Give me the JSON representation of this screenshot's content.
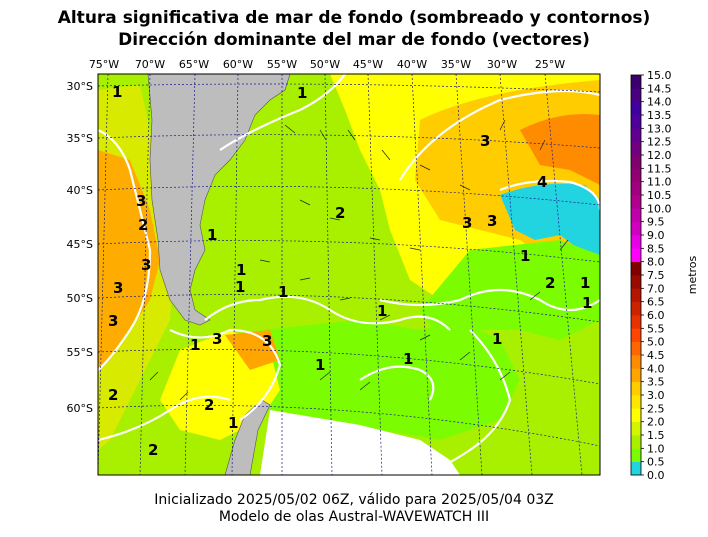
{
  "title": {
    "line1": "Altura significativa de mar de fondo (sombreado y contornos)",
    "line2": "Dirección dominante del mar de fondo (vectores)"
  },
  "footer": {
    "line1": "Inicializado 2025/05/02 06Z, válido para 2025/05/04 03Z",
    "line2": "Modelo de olas Austral-WAVEWATCH III"
  },
  "map": {
    "lon_ticks": [
      "75°W",
      "70°W",
      "65°W",
      "60°W",
      "55°W",
      "50°W",
      "45°W",
      "40°W",
      "35°W",
      "30°W",
      "25°W"
    ],
    "lat_ticks": [
      "30°S",
      "35°S",
      "40°S",
      "45°S",
      "50°S",
      "55°S",
      "60°S"
    ],
    "contour_labels": [
      "1",
      "3",
      "4",
      "3",
      "3",
      "2",
      "3",
      "2",
      "1",
      "1",
      "1",
      "3",
      "1",
      "1",
      "3",
      "3",
      "1",
      "1",
      "1",
      "1",
      "2",
      "1",
      "1",
      "1",
      "3",
      "3",
      "2",
      "2",
      "2",
      "1",
      "1"
    ],
    "colors": {
      "land": "#bdbdbd",
      "ice_or_nodata": "#ffffff",
      "contour": "#ffffff",
      "graticule": "#1a1a8c"
    }
  },
  "colorbar": {
    "label": "metros",
    "tick_labels": [
      "15.0",
      "14.5",
      "14.0",
      "13.5",
      "13.0",
      "12.5",
      "12.0",
      "11.5",
      "11.0",
      "10.5",
      "10.0",
      "9.5",
      "9.0",
      "8.5",
      "8.0",
      "7.5",
      "7.0",
      "6.5",
      "6.0",
      "5.5",
      "5.0",
      "4.5",
      "4.0",
      "3.5",
      "3.0",
      "2.5",
      "2.0",
      "1.5",
      "1.0",
      "0.5",
      "0.0"
    ],
    "colors_bottom_to_top": [
      "#22d3e0",
      "#7cfc00",
      "#a8f000",
      "#d4f500",
      "#ffff00",
      "#ffe600",
      "#ffcc00",
      "#ffa500",
      "#ff8c00",
      "#ff6600",
      "#ff4500",
      "#e63200",
      "#cc2200",
      "#b31500",
      "#990a00",
      "#800000",
      "#ff00ff",
      "#e600e6",
      "#d100c0",
      "#c000a8",
      "#b00090",
      "#a00080",
      "#900070",
      "#800070",
      "#700080",
      "#600090",
      "#50009a",
      "#4000a0",
      "#4b0082",
      "#3c006e"
    ]
  }
}
